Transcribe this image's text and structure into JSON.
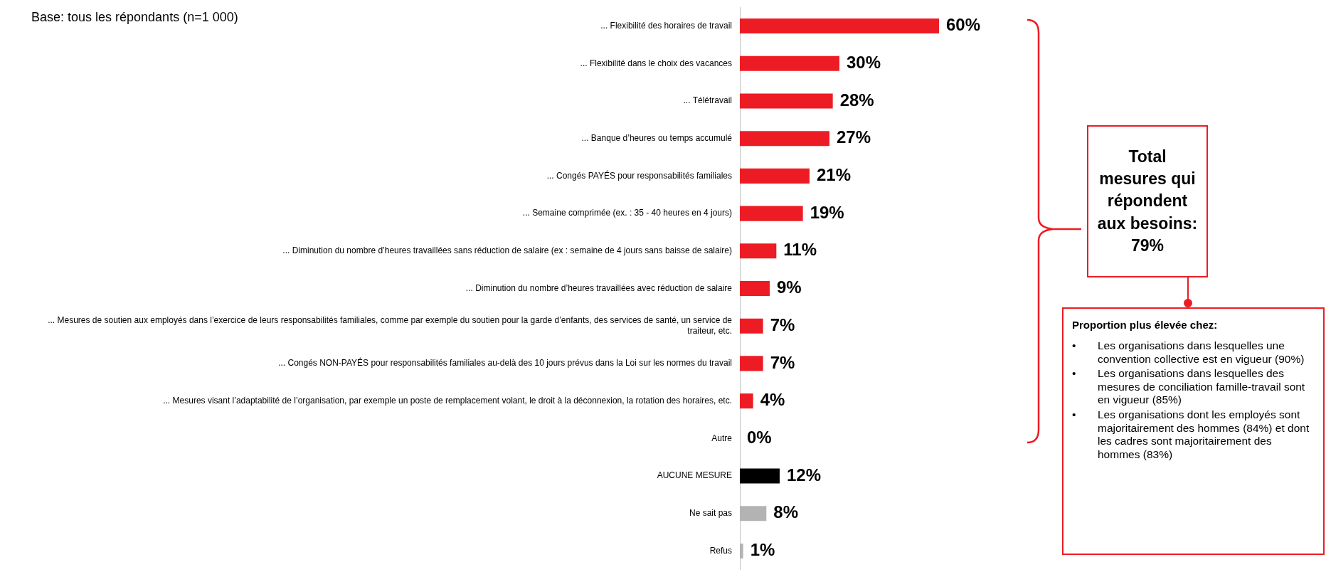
{
  "chart_data": {
    "type": "bar",
    "orientation": "horizontal",
    "data_labels": true,
    "legend": false,
    "grid": false,
    "categories": [
      "... Flexibilité des horaires de travail",
      "... Flexibilité dans le choix des vacances",
      "... Télétravail",
      "... Banque d’heures ou temps accumulé",
      "... Congés PAYÉS pour responsabilités familiales",
      "... Semaine comprimée (ex. : 35 - 40 heures en 4 jours)",
      "... Diminution du nombre d’heures travaillées sans réduction de salaire (ex : semaine de 4 jours sans baisse de salaire)",
      "... Diminution du nombre d’heures travaillées avec réduction de salaire",
      "... Mesures de soutien aux employés dans l’exercice de leurs responsabilités familiales, comme par exemple du soutien pour la garde d’enfants, des services de santé, un service de traiteur, etc.",
      "... Congés NON-PAYÉS pour responsabilités familiales au-delà des 10 jours prévus dans la Loi sur les normes du travail",
      "... Mesures visant l’adaptabilité de l’organisation, par exemple un poste de remplacement volant, le droit à la déconnexion, la rotation des horaires, etc.",
      "Autre",
      "AUCUNE MESURE",
      "Ne sait pas",
      "Refus"
    ],
    "values": [
      60,
      30,
      28,
      27,
      21,
      19,
      11,
      9,
      7,
      7,
      4,
      0,
      12,
      8,
      1
    ],
    "value_labels": [
      "60%",
      "30%",
      "28%",
      "27%",
      "21%",
      "19%",
      "11%",
      "9%",
      "7%",
      "7%",
      "4%",
      "0%",
      "12%",
      "8%",
      "1%"
    ],
    "colors": [
      "#ed1c24",
      "#ed1c24",
      "#ed1c24",
      "#ed1c24",
      "#ed1c24",
      "#ed1c24",
      "#ed1c24",
      "#ed1c24",
      "#ed1c24",
      "#ed1c24",
      "#ed1c24",
      "#ed1c24",
      "#000000",
      "#b3b3b3",
      "#b3b3b3"
    ],
    "annotations": [
      "Base: tous les répondants (n=1 000)",
      "Total mesures qui répondent aux besoins: 79%",
      "Proportion plus élevée chez:",
      "• Les organisations dans lesquelles une convention collective est en vigueur (90%)",
      "• Les organisations dans lesquelles des mesures de conciliation famille-travail sont en vigueur (85%)",
      "• Les organisations dont les employés sont majoritairement des hommes (84%) et dont les cadres sont majoritairement des hommes (83%)"
    ]
  }
}
